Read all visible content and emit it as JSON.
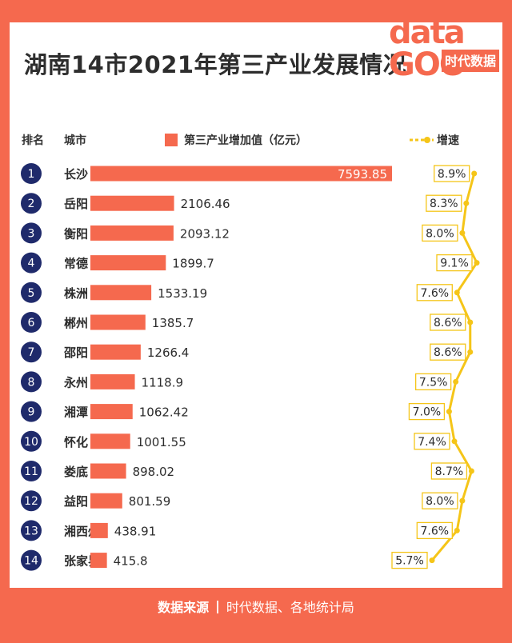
{
  "title": "湖南14市2021年第三产业发展情况",
  "logo": {
    "line1": "data",
    "line2": "GOO",
    "brand": "时代数据"
  },
  "headers": {
    "rank": "排名",
    "city": "城市",
    "value": "第三产业增加值（亿元）",
    "speed": "增速"
  },
  "footer": {
    "label": "数据来源",
    "sources": "时代数据、各地统计局"
  },
  "colors": {
    "background": "#f5694e",
    "bar": "#f5694e",
    "rank_circle": "#1f2a6b",
    "line": "#f5c518"
  },
  "chart_data": {
    "type": "bar",
    "orientation": "horizontal",
    "title": "湖南14市2021年第三产业发展情况",
    "ranks": [
      "1",
      "2",
      "3",
      "4",
      "5",
      "6",
      "7",
      "8",
      "9",
      "10",
      "11",
      "12",
      "13",
      "14"
    ],
    "categories": [
      "长沙",
      "岳阳",
      "衡阳",
      "常德",
      "株洲",
      "郴州",
      "邵阳",
      "永州",
      "湘潭",
      "怀化",
      "娄底",
      "益阳",
      "湘西州",
      "张家界"
    ],
    "series": [
      {
        "name": "第三产业增加值（亿元）",
        "type": "bar",
        "values": [
          7593.85,
          2106.46,
          2093.12,
          1899.7,
          1533.19,
          1385.7,
          1266.4,
          1118.9,
          1062.42,
          1001.55,
          898.02,
          801.59,
          438.91,
          415.8
        ],
        "labels": [
          "7593.85",
          "2106.46",
          "2093.12",
          "1899.7",
          "1533.19",
          "1385.7",
          "1266.4",
          "1118.9",
          "1062.42",
          "1001.55",
          "898.02",
          "801.59",
          "438.91",
          "415.8"
        ]
      },
      {
        "name": "增速",
        "type": "line",
        "values": [
          8.9,
          8.3,
          8.0,
          9.1,
          7.6,
          8.6,
          8.6,
          7.5,
          7.0,
          7.4,
          8.7,
          8.0,
          7.6,
          5.7
        ],
        "labels": [
          "8.9%",
          "8.3%",
          "8.0%",
          "9.1%",
          "7.6%",
          "8.6%",
          "8.6%",
          "7.5%",
          "7.0%",
          "7.4%",
          "8.7%",
          "8.0%",
          "7.6%",
          "5.7%"
        ]
      }
    ],
    "legend": "top"
  }
}
